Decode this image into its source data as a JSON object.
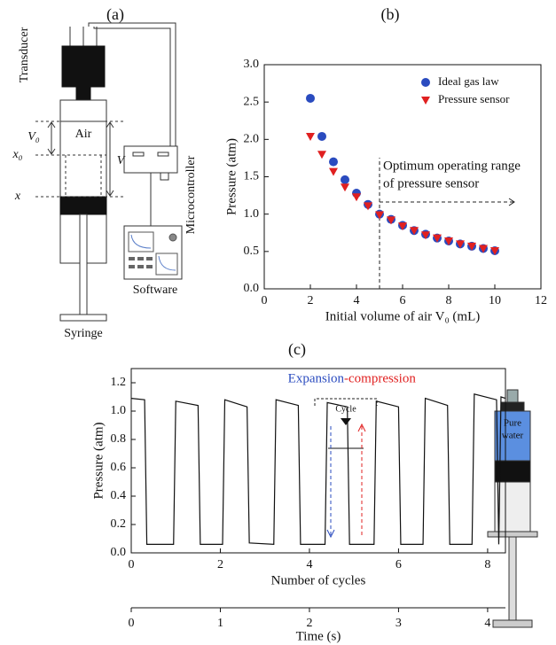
{
  "panels": {
    "a": "(a)",
    "b": "(b)",
    "c": "(c)"
  },
  "diagram": {
    "transducer": "Transducer",
    "air": "Air",
    "v0": "V₀",
    "x0": "x₀",
    "v": "V",
    "x": "x",
    "microcontroller": "Microcontroller",
    "software": "Software",
    "syringe": "Syringe",
    "pure_water": [
      "Pure",
      "water"
    ]
  },
  "chart_data": [
    {
      "type": "scatter",
      "xlabel": "Initial volume of air V₀ (mL)",
      "ylabel": "Pressure (atm)",
      "xlim": [
        0,
        12
      ],
      "xticks": [
        0,
        2,
        4,
        6,
        8,
        10,
        12
      ],
      "ylim": [
        0,
        3
      ],
      "yticks": [
        {
          "value": 0,
          "label": "0.0"
        },
        {
          "value": 0.5,
          "label": "0.5"
        },
        {
          "value": 1,
          "label": "1.0"
        },
        {
          "value": 1.5,
          "label": "1.5"
        },
        {
          "value": 2,
          "label": "2.0"
        },
        {
          "value": 2.5,
          "label": "2.5"
        },
        {
          "value": 3,
          "label": "3.0"
        }
      ],
      "x": [
        2,
        2.5,
        3,
        3.5,
        4,
        4.5,
        5,
        5.5,
        6,
        6.5,
        7,
        7.5,
        8,
        8.5,
        9,
        9.5,
        10
      ],
      "series": [
        {
          "name": "Ideal gas law",
          "color": "#2a4bbf",
          "marker": "circle",
          "values": [
            2.55,
            2.04,
            1.7,
            1.46,
            1.28,
            1.13,
            1.0,
            0.93,
            0.85,
            0.78,
            0.73,
            0.68,
            0.64,
            0.6,
            0.57,
            0.54,
            0.51
          ]
        },
        {
          "name": "Pressure sensor",
          "color": "#e02020",
          "marker": "triangle",
          "values": [
            2.04,
            1.8,
            1.57,
            1.36,
            1.23,
            1.11,
            0.99,
            0.92,
            0.84,
            0.78,
            0.72,
            0.68,
            0.64,
            0.6,
            0.57,
            0.54,
            0.51
          ]
        }
      ],
      "legend": "upper right",
      "marker_x": 5,
      "annotation": [
        "Optimum operating range",
        "of pressure sensor"
      ]
    },
    {
      "type": "line",
      "xlabel": "Number of cycles",
      "ylabel": "Pressure (atm)",
      "xlim": [
        0,
        8.4
      ],
      "xticks": [
        0,
        2,
        4,
        6,
        8
      ],
      "ylim": [
        0,
        1.3
      ],
      "yticks": [
        {
          "value": 0,
          "label": "0.0"
        },
        {
          "value": 0.2,
          "label": "0.2"
        },
        {
          "value": 0.4,
          "label": "0.4"
        },
        {
          "value": 0.6,
          "label": "0.6"
        },
        {
          "value": 0.8,
          "label": "0.8"
        },
        {
          "value": 1,
          "label": "1.0"
        },
        {
          "value": 1.2,
          "label": "1.2"
        }
      ],
      "x2label": "Time (s)",
      "x2lim": [
        0,
        4.2
      ],
      "x2ticks": [
        0,
        1,
        2,
        3,
        4
      ],
      "color": "#111111",
      "x": [
        0,
        0.3,
        0.35,
        0.95,
        1.0,
        1.5,
        1.55,
        2.05,
        2.1,
        2.6,
        2.65,
        3.2,
        3.25,
        3.75,
        3.8,
        4.35,
        4.4,
        4.85,
        4.9,
        5.45,
        5.5,
        6.0,
        6.05,
        6.55,
        6.6,
        7.1,
        7.15,
        7.65,
        7.7,
        8.2,
        8.25,
        8.3,
        8.4
      ],
      "values": [
        1.09,
        1.08,
        0.06,
        0.06,
        1.07,
        1.04,
        0.06,
        0.06,
        1.08,
        1.03,
        0.07,
        0.06,
        1.08,
        1.04,
        0.06,
        0.06,
        1.06,
        1.03,
        0.06,
        0.06,
        1.07,
        1.03,
        0.06,
        0.06,
        1.09,
        1.04,
        0.06,
        0.06,
        1.12,
        1.08,
        0.06,
        1.1,
        1.09
      ],
      "annotation": {
        "expansion": "Expansion",
        "compression": "-compression",
        "cycle": "Cycle"
      }
    }
  ]
}
